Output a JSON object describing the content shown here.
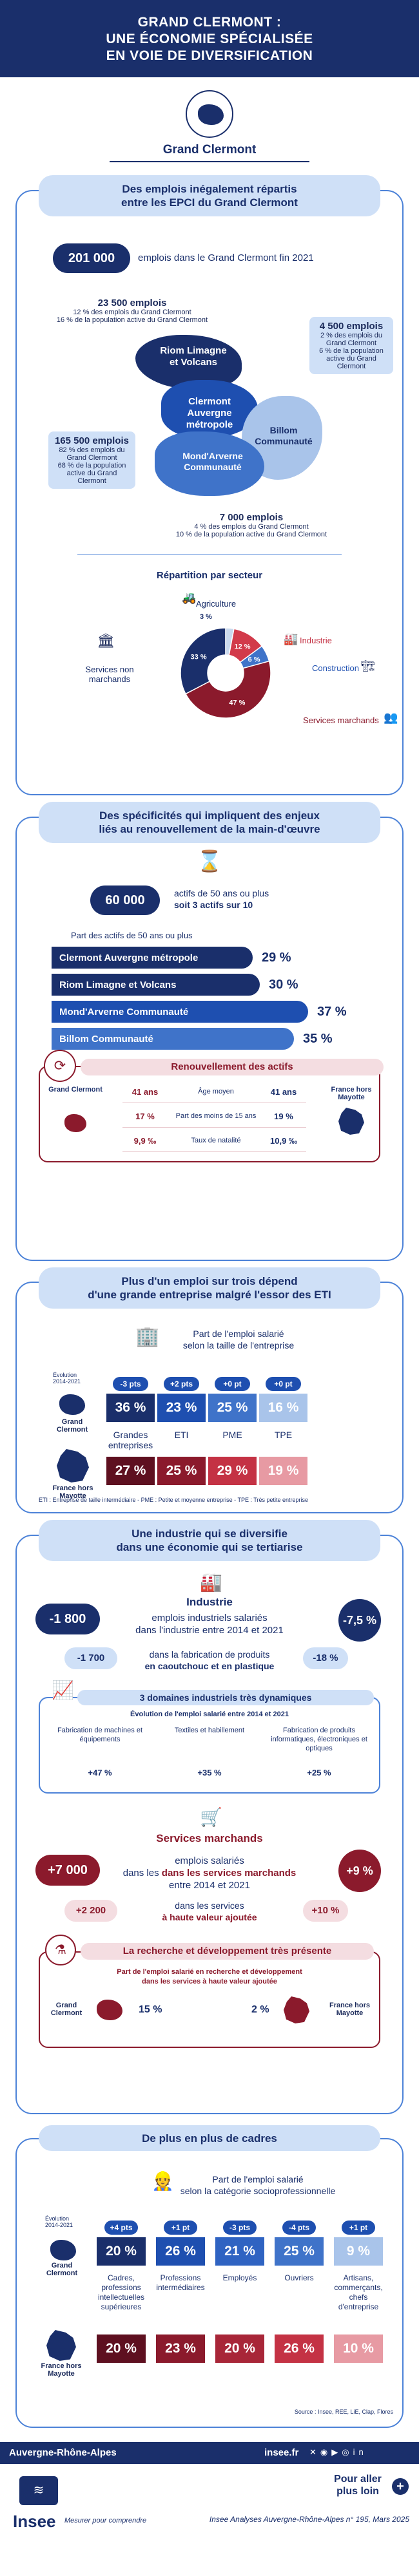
{
  "header": {
    "title_line1": "GRAND CLERMONT :",
    "title_line2": "UNE ÉCONOMIE SPÉCIALISÉE",
    "title_line3": "EN VOIE DE DIVERSIFICATION",
    "territory": "Grand Clermont"
  },
  "section1": {
    "title_line1": "Des emplois inégalement répartis",
    "title_line2": "entre les EPCI du Grand Clermont",
    "total_value": "201 000",
    "total_label": "emplois dans le Grand Clermont fin 2021",
    "epci": [
      {
        "name": "Riom Limagne et Volcans",
        "jobs": "23 500 emplois",
        "line1": "12 % des emplois du Grand Clermont",
        "line2": "16 % de la population active du Grand Clermont"
      },
      {
        "name": "Clermont Auvergne métropole",
        "jobs": "165 500 emplois",
        "line1": "82 % des emplois du Grand Clermont",
        "line2": "68 % de la population active du Grand Clermont"
      },
      {
        "name": "Billom Communauté",
        "jobs": "4 500 emplois",
        "line1": "2 % des emplois du Grand Clermont",
        "line2": "6 % de la population active du Grand Clermont"
      },
      {
        "name": "Mond'Arverne Communauté",
        "jobs": "7 000 emplois",
        "line1": "4 % des emplois du Grand Clermont",
        "line2": "10 % de la population active du Grand Clermont"
      }
    ],
    "sector_title": "Répartition par secteur",
    "sectors": [
      {
        "name": "Agriculture",
        "value": 3,
        "label": "3 %",
        "color": "#c9d9ee"
      },
      {
        "name": "Industrie",
        "value": 12,
        "label": "12 %",
        "color": "#d23a4a"
      },
      {
        "name": "Construction",
        "value": 6,
        "label": "6 %",
        "color": "#3f73c9"
      },
      {
        "name": "Services marchands",
        "value": 47,
        "label": "47 %",
        "color": "#8b1a2c"
      },
      {
        "name": "Services non marchands",
        "value": 33,
        "label": "33 %",
        "color": "#1a2f6b"
      }
    ]
  },
  "section2": {
    "title_line1": "Des spécificités qui impliquent des enjeux",
    "title_line2": "liés au renouvellement de la main-d'œuvre",
    "active_value": "60 000",
    "active_line1": "actifs de 50 ans ou plus",
    "active_line2": "soit 3 actifs sur 10",
    "share_label": "Part des actifs de 50 ans ou plus",
    "bars": [
      {
        "name": "Clermont Auvergne métropole",
        "value": 29,
        "label": "29 %",
        "color": "#1a2f6b"
      },
      {
        "name": "Riom Limagne et Volcans",
        "value": 30,
        "label": "30 %",
        "color": "#1a2f6b"
      },
      {
        "name": "Mond'Arverne Communauté",
        "value": 37,
        "label": "37 %",
        "color": "#1e4fb0"
      },
      {
        "name": "Billom Communauté",
        "value": 35,
        "label": "35 %",
        "color": "#3f73c9"
      }
    ],
    "renewal_title": "Renouvellement des actifs",
    "left_label": "Grand Clermont",
    "right_label": "France hors Mayotte",
    "renewal_rows": [
      {
        "left": "41 ans",
        "middle": "Âge moyen",
        "right": "41 ans"
      },
      {
        "left": "17 %",
        "middle": "Part des moins de 15 ans",
        "right": "19 %"
      },
      {
        "left": "9,9 ‰",
        "middle": "Taux de natalité",
        "right": "10,9 ‰"
      }
    ]
  },
  "section3": {
    "title_line1": "Plus d'un emploi sur trois dépend",
    "title_line2": "d'une grande entreprise malgré l'essor des ETI",
    "subtitle_line1": "Part de l'emploi salarié",
    "subtitle_line2": "selon la taille de l'entreprise",
    "evolution_label": "Évolution 2014-2021",
    "left_label": "Grand Clermont",
    "france_label": "France hors Mayotte",
    "categories": [
      "Grandes entreprises",
      "ETI",
      "PME",
      "TPE"
    ],
    "evolution": [
      "-3 pts",
      "+2 pts",
      "+0 pt",
      "+0 pt"
    ],
    "gc_values": [
      36,
      23,
      25,
      16
    ],
    "gc_labels": [
      "36 %",
      "23 %",
      "25 %",
      "16 %"
    ],
    "fr_values": [
      27,
      25,
      29,
      19
    ],
    "fr_labels": [
      "27 %",
      "25 %",
      "29 %",
      "19 %"
    ],
    "gc_colors": [
      "#1a2f6b",
      "#1e4fb0",
      "#3f73c9",
      "#a9c4ea"
    ],
    "fr_colors": [
      "#5e1020",
      "#8b1a2c",
      "#c43244",
      "#e79aa3"
    ],
    "footnote": "ETI : Entreprise de taille intermédiaire - PME : Petite et moyenne entreprise - TPE : Très petite entreprise"
  },
  "section4": {
    "title_line1": "Une industrie qui se diversifie",
    "title_line2": "dans une économie qui se tertiarise",
    "industry_title": "Industrie",
    "ind_left": "-1 800",
    "ind_right": "-7,5 %",
    "ind_text_line1": "emplois industriels salariés",
    "ind_text_line2": "dans l'industrie entre 2014 et 2021",
    "sub_left": "-1 700",
    "sub_right": "-18 %",
    "sub_text_line1": "dans la fabrication de produits",
    "sub_text_line2": "en caoutchouc et en plastique",
    "dyn_title": "3 domaines industriels très dynamiques",
    "dyn_subtitle": "Évolution de l'emploi salarié entre 2014 et 2021",
    "dyn_items": [
      {
        "name": "Fabrication de machines et équipements",
        "value": "+47 %"
      },
      {
        "name": "Textiles et habillement",
        "value": "+35 %"
      },
      {
        "name": "Fabrication de produits informatiques, électroniques et optiques",
        "value": "+25 %"
      }
    ],
    "services_title": "Services marchands",
    "srv_left": "+7 000",
    "srv_right": "+9 %",
    "srv_text_line1": "emplois salariés",
    "srv_text_line2": "dans les services marchands",
    "srv_text_line3": "entre 2014 et 2021",
    "srv_sub_left": "+2 200",
    "srv_sub_right": "+10 %",
    "srv_sub_line1": "dans les services",
    "srv_sub_line2": "à haute valeur ajoutée",
    "rd_title": "La recherche et développement très présente",
    "rd_subtitle_line1": "Part de l'emploi salarié en recherche et développement",
    "rd_subtitle_line2": "dans les services à haute valeur ajoutée",
    "rd_left_label": "Grand Clermont",
    "rd_left_value": "15 %",
    "rd_right_value": "2 %",
    "rd_right_label": "France hors Mayotte"
  },
  "section5": {
    "title": "De plus en plus de cadres",
    "subtitle_line1": "Part de l'emploi salarié",
    "subtitle_line2": "selon la catégorie socioprofessionnelle",
    "evolution_label": "Évolution 2014-2021",
    "left_label": "Grand Clermont",
    "france_label": "France hors Mayotte",
    "categories": [
      "Cadres, professions intellectuelles supérieures",
      "Professions intermédiaires",
      "Employés",
      "Ouvriers",
      "Artisans, commerçants, chefs d'entreprise"
    ],
    "evolution": [
      "+4 pts",
      "+1 pt",
      "-3 pts",
      "-4 pts",
      "+1 pt"
    ],
    "gc_values": [
      20,
      26,
      21,
      25,
      9
    ],
    "gc_labels": [
      "20 %",
      "26 %",
      "21 %",
      "25 %",
      "9 %"
    ],
    "fr_values": [
      20,
      23,
      20,
      26,
      10
    ],
    "fr_labels": [
      "20 %",
      "23 %",
      "20 %",
      "26 %",
      "10 %"
    ],
    "source": "Source : Insee, REE, LiE, Clap, Flores"
  },
  "footer": {
    "region": "Auvergne-Rhône-Alpes",
    "site": "insee.fr",
    "more_line1": "Pour aller",
    "more_line2": "plus loin",
    "logo_text": "Insee",
    "tagline": "Mesurer pour comprendre",
    "publication": "Insee Analyses Auvergne-Rhône-Alpes n° 195, Mars 2025"
  }
}
